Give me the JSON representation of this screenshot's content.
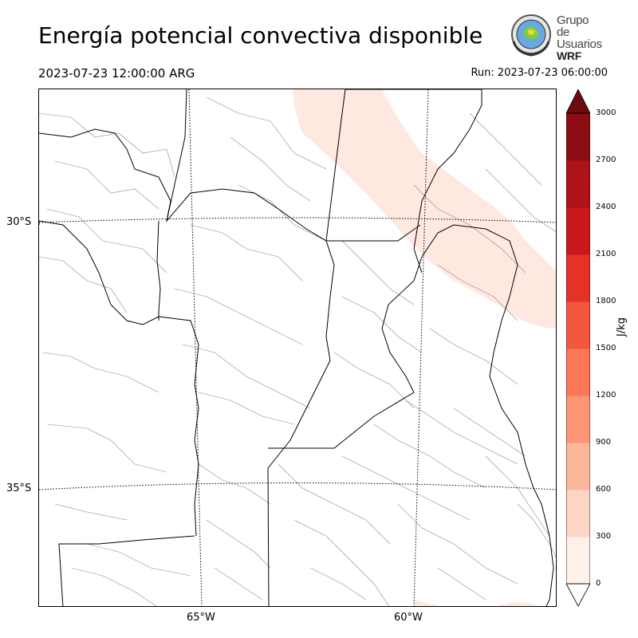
{
  "title": "Energía potencial convectiva disponible",
  "valid_time": "2023-07-23 12:00:00 ARG",
  "run_time": "Run: 2023-07-23 06:00:00",
  "logo": {
    "line1": "Grupo de",
    "line2": "Usuarios",
    "line3": "WRF",
    "icon": "globe-seal-icon"
  },
  "map": {
    "lat_labels": [
      "30°S",
      "35°S"
    ],
    "lon_labels": [
      "65°W",
      "60°W"
    ],
    "colors": {
      "border_line": "#000000",
      "department_line": "#888888",
      "gridline": "#000000",
      "cape_low_fill": "#fee8e0"
    }
  },
  "colorbar": {
    "unit": "J/kg",
    "ticks": [
      "0",
      "300",
      "600",
      "900",
      "1200",
      "1500",
      "1800",
      "2100",
      "2400",
      "2700",
      "3000"
    ],
    "colors": [
      "#fff0ea",
      "#fed6c6",
      "#fcb89b",
      "#fc9676",
      "#fb7757",
      "#f4573f",
      "#e53228",
      "#cb181d",
      "#ad1319",
      "#8b0c12",
      "#6b0b10"
    ]
  }
}
